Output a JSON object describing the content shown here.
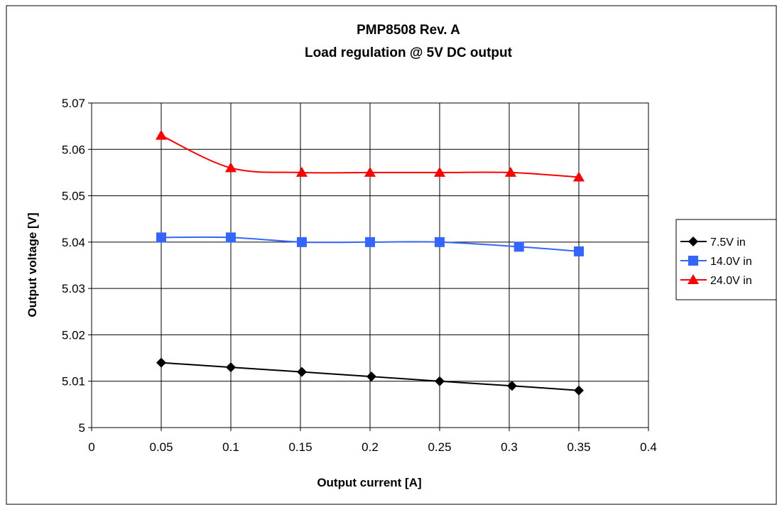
{
  "chart_data": {
    "type": "line",
    "title": "PMP8508 Rev. A",
    "subtitle": "Load regulation @ 5V DC output",
    "xlabel": "Output current [A]",
    "ylabel": "Output voltage [V]",
    "xlim": [
      0,
      0.4
    ],
    "ylim": [
      5,
      5.07
    ],
    "x_ticks": [
      "0",
      "0.05",
      "0.1",
      "0.15",
      "0.2",
      "0.25",
      "0.3",
      "0.35",
      "0.4"
    ],
    "y_ticks": [
      "5",
      "5.01",
      "5.02",
      "5.03",
      "5.04",
      "5.05",
      "5.06",
      "5.07"
    ],
    "grid": true,
    "legend_position": "right",
    "series": [
      {
        "name": "7.5V in",
        "color": "#000000",
        "marker": "diamond",
        "x": [
          0.05,
          0.1,
          0.151,
          0.201,
          0.25,
          0.302,
          0.35
        ],
        "y": [
          5.014,
          5.013,
          5.012,
          5.011,
          5.01,
          5.009,
          5.008
        ]
      },
      {
        "name": "14.0V in",
        "color": "#3366ff",
        "marker": "square",
        "x": [
          0.05,
          0.1,
          0.151,
          0.2,
          0.25,
          0.307,
          0.35
        ],
        "y": [
          5.041,
          5.041,
          5.04,
          5.04,
          5.04,
          5.039,
          5.038
        ]
      },
      {
        "name": "24.0V in",
        "color": "#ff0000",
        "marker": "triangle",
        "x": [
          0.05,
          0.1,
          0.151,
          0.2,
          0.25,
          0.301,
          0.35
        ],
        "y": [
          5.063,
          5.056,
          5.055,
          5.055,
          5.055,
          5.055,
          5.054
        ]
      }
    ]
  }
}
